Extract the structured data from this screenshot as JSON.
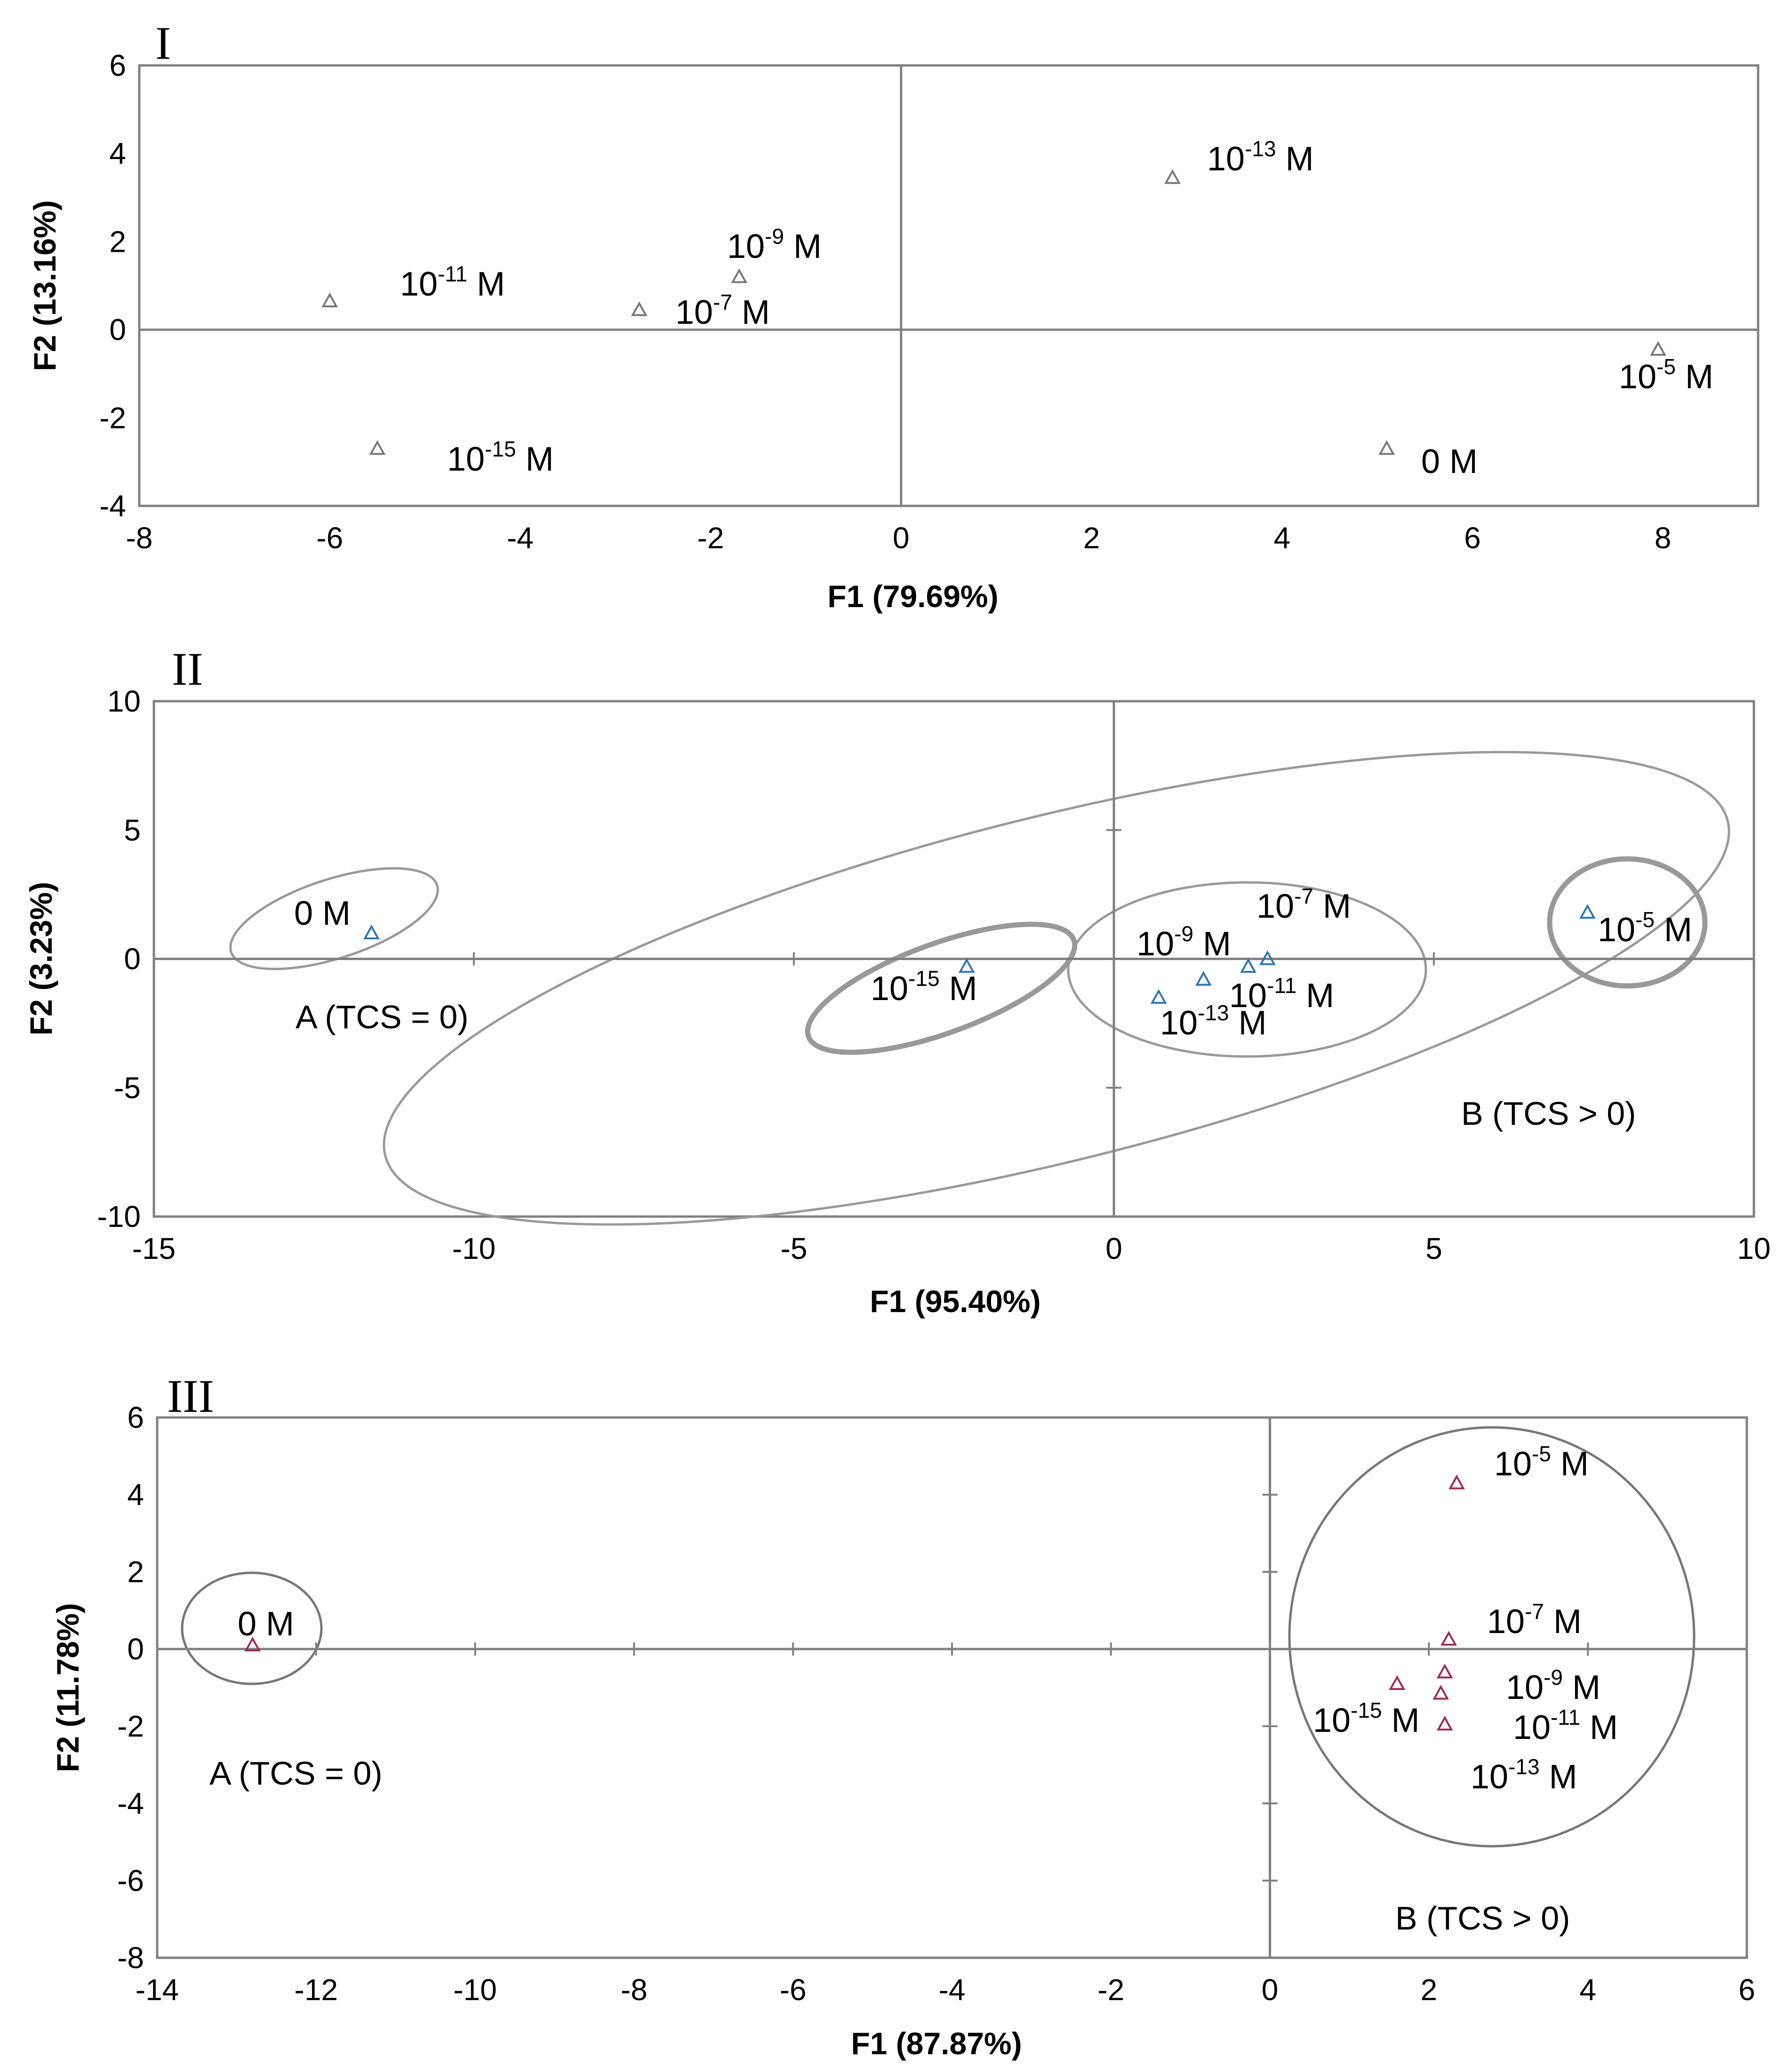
{
  "chart_data": [
    {
      "type": "scatter",
      "panel": "I",
      "xlabel": "F1 (79.69%)",
      "ylabel": "F2 (13.16%)",
      "xlim": [
        -8,
        9
      ],
      "ylim": [
        -4,
        6
      ],
      "xticks": [
        -8,
        -6,
        -4,
        -2,
        0,
        2,
        4,
        6,
        8
      ],
      "yticks": [
        -4,
        -2,
        0,
        2,
        4,
        6
      ],
      "xtick_labels": [
        "-8",
        "-6",
        "-4",
        "-2",
        "0",
        "2",
        "4",
        "6",
        "8"
      ],
      "ytick_labels": [
        "-4",
        "-2",
        "0",
        "2",
        "4",
        "6"
      ],
      "marker_color": "#777777",
      "points": [
        {
          "x": -6.0,
          "y": 0.65,
          "label_base": "10",
          "label_exp": "-11",
          "label_unit": " M"
        },
        {
          "x": -5.5,
          "y": -2.7,
          "label_base": "10",
          "label_exp": "-15",
          "label_unit": " M"
        },
        {
          "x": -2.75,
          "y": 0.45,
          "label_base": "10",
          "label_exp": "-7",
          "label_unit": " M"
        },
        {
          "x": -1.7,
          "y": 1.2,
          "label_base": "10",
          "label_exp": "-9",
          "label_unit": " M"
        },
        {
          "x": 2.85,
          "y": 3.45,
          "label_base": "10",
          "label_exp": "-13",
          "label_unit": " M"
        },
        {
          "x": 5.1,
          "y": -2.7,
          "label_base": "0 M",
          "label_exp": "",
          "label_unit": ""
        },
        {
          "x": 7.95,
          "y": -0.45,
          "label_base": "10",
          "label_exp": "-5",
          "label_unit": " M"
        }
      ]
    },
    {
      "type": "scatter",
      "panel": "II",
      "xlabel": "F1 (95.40%)",
      "ylabel": "F2 (3.23%)",
      "xlim": [
        -15,
        10
      ],
      "ylim": [
        -10,
        10
      ],
      "xticks": [
        -15,
        -10,
        -5,
        0,
        5,
        10
      ],
      "yticks": [
        -10,
        -5,
        0,
        5,
        10
      ],
      "xtick_labels": [
        "-15",
        "-10",
        "-5",
        "0",
        "5",
        "10"
      ],
      "ytick_labels": [
        "-10",
        "-5",
        "0",
        "5",
        "10"
      ],
      "marker_color": "#2E75B6",
      "points": [
        {
          "x": -11.6,
          "y": 1.0,
          "label_base": "0 M",
          "label_exp": "",
          "label_unit": ""
        },
        {
          "x": -2.3,
          "y": -0.3,
          "label_base": "10",
          "label_exp": "-15",
          "label_unit": " M"
        },
        {
          "x": 0.7,
          "y": -1.5,
          "label_base": "10",
          "label_exp": "-13",
          "label_unit": " M"
        },
        {
          "x": 1.4,
          "y": -0.8,
          "label_base": "10",
          "label_exp": "-9",
          "label_unit": " M"
        },
        {
          "x": 2.1,
          "y": -0.3,
          "label_base": "10",
          "label_exp": "-11",
          "label_unit": " M"
        },
        {
          "x": 2.4,
          "y": 0.0,
          "label_base": "10",
          "label_exp": "-7",
          "label_unit": " M"
        },
        {
          "x": 7.4,
          "y": 1.8,
          "label_base": "10",
          "label_exp": "-5",
          "label_unit": " M"
        }
      ],
      "group_labels": [
        "A (TCS = 0)",
        "B (TCS > 0)"
      ]
    },
    {
      "type": "scatter",
      "panel": "III",
      "xlabel": "F1 (87.87%)",
      "ylabel": "F2 (11.78%)",
      "xlim": [
        -14,
        6
      ],
      "ylim": [
        -8,
        6
      ],
      "xticks": [
        -14,
        -12,
        -10,
        -8,
        -6,
        -4,
        -2,
        0,
        2,
        4,
        6
      ],
      "yticks": [
        -8,
        -6,
        -4,
        -2,
        0,
        2,
        4,
        6
      ],
      "xtick_labels": [
        "-14",
        "-12",
        "-10",
        "-8",
        "-6",
        "-4",
        "-2",
        "0",
        "2",
        "4",
        "6"
      ],
      "ytick_labels": [
        "-8",
        "-6",
        "-4",
        "-2",
        "0",
        "2",
        "4",
        "6"
      ],
      "marker_color": "#9B2A5A",
      "points": [
        {
          "x": -12.8,
          "y": 0.1,
          "label_base": "0 M",
          "label_exp": "",
          "label_unit": ""
        },
        {
          "x": 2.35,
          "y": 4.3,
          "label_base": "10",
          "label_exp": "-5",
          "label_unit": " M"
        },
        {
          "x": 2.25,
          "y": 0.25,
          "label_base": "10",
          "label_exp": "-7",
          "label_unit": " M"
        },
        {
          "x": 2.2,
          "y": -0.6,
          "label_base": "10",
          "label_exp": "-9",
          "label_unit": " M"
        },
        {
          "x": 2.15,
          "y": -1.15,
          "label_base": "10",
          "label_exp": "-11",
          "label_unit": " M"
        },
        {
          "x": 1.6,
          "y": -0.9,
          "label_base": "10",
          "label_exp": "-15",
          "label_unit": " M"
        },
        {
          "x": 2.2,
          "y": -1.95,
          "label_base": "10",
          "label_exp": "-13",
          "label_unit": " M"
        }
      ],
      "group_labels": [
        "A (TCS = 0)",
        "B (TCS > 0)"
      ]
    }
  ]
}
